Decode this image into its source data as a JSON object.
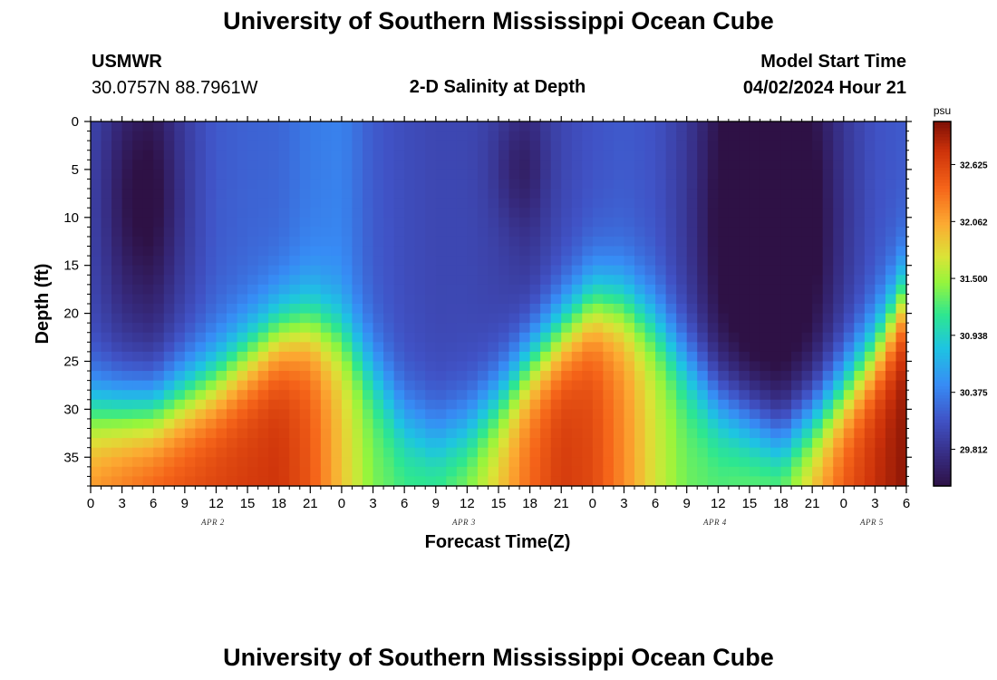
{
  "page": {
    "top_title": "University of Southern Mississippi Ocean Cube",
    "bottom_title": "University of Southern Mississippi Ocean Cube",
    "station_name": "USMWR",
    "station_coords": "30.0757N  88.7961W",
    "plot_title": "2-D Salinity at Depth",
    "model_start_label": "Model Start Time",
    "model_start_value": "04/02/2024 Hour 21"
  },
  "chart_data": {
    "type": "heatmap",
    "title": "2-D Salinity at Depth",
    "xlabel": "Forecast Time(Z)",
    "ylabel": "Depth (ft)",
    "x_range_hours": [
      0,
      78
    ],
    "y_range_ft": [
      0,
      38
    ],
    "y_inverted": true,
    "x_tick_hours": [
      0,
      3,
      6,
      9,
      12,
      15,
      18,
      21,
      24,
      27,
      30,
      33,
      36,
      39,
      42,
      45,
      48,
      51,
      54,
      57,
      60,
      63,
      66,
      69,
      72,
      75,
      78
    ],
    "x_tick_labels": [
      "0",
      "3",
      "6",
      "9",
      "12",
      "15",
      "18",
      "21",
      "0",
      "3",
      "6",
      "9",
      "12",
      "15",
      "18",
      "21",
      "0",
      "3",
      "6",
      "9",
      "12",
      "15",
      "18",
      "21",
      "0",
      "3",
      "6"
    ],
    "y_ticks": [
      0,
      5,
      10,
      15,
      20,
      25,
      30,
      35
    ],
    "y_tick_labels": [
      "0",
      "5",
      "10",
      "15",
      "20",
      "25",
      "30",
      "35"
    ],
    "date_labels": [
      {
        "text": "APR 2",
        "hour": 12
      },
      {
        "text": "APR 3",
        "hour": 36
      },
      {
        "text": "APR 4",
        "hour": 60
      },
      {
        "text": "APR 5",
        "hour": 75
      }
    ],
    "colorbar": {
      "unit": "psu",
      "range": [
        29.45,
        33.05
      ],
      "ticks": [
        29.812,
        30.375,
        30.938,
        31.5,
        32.062,
        32.625
      ],
      "tick_labels": [
        "29.812",
        "30.375",
        "30.938",
        "31.500",
        "32.062",
        "32.625"
      ]
    },
    "grid": {
      "nx": 78,
      "ny": 38,
      "bottom_depth_ft": 38,
      "interface_depth_profile": [
        {
          "hour": 0,
          "depth": 30
        },
        {
          "hour": 6,
          "depth": 30
        },
        {
          "hour": 12,
          "depth": 27
        },
        {
          "hour": 18,
          "depth": 22
        },
        {
          "hour": 21,
          "depth": 21
        },
        {
          "hour": 24,
          "depth": 22
        },
        {
          "hour": 27,
          "depth": 26
        },
        {
          "hour": 30,
          "depth": 31
        },
        {
          "hour": 33,
          "depth": 33
        },
        {
          "hour": 36,
          "depth": 32
        },
        {
          "hour": 39,
          "depth": 29
        },
        {
          "hour": 42,
          "depth": 25
        },
        {
          "hour": 45,
          "depth": 22
        },
        {
          "hour": 48,
          "depth": 19
        },
        {
          "hour": 51,
          "depth": 19
        },
        {
          "hour": 54,
          "depth": 21
        },
        {
          "hour": 57,
          "depth": 25
        },
        {
          "hour": 60,
          "depth": 29
        },
        {
          "hour": 63,
          "depth": 31
        },
        {
          "hour": 66,
          "depth": 33
        },
        {
          "hour": 69,
          "depth": 31
        },
        {
          "hour": 72,
          "depth": 28
        },
        {
          "hour": 75,
          "depth": 24
        },
        {
          "hour": 78,
          "depth": 18
        }
      ],
      "surface_salinity_profile": [
        {
          "hour": 0,
          "value": 30.0
        },
        {
          "hour": 3,
          "value": 29.8
        },
        {
          "hour": 6,
          "value": 29.72
        },
        {
          "hour": 9,
          "value": 29.95
        },
        {
          "hour": 12,
          "value": 30.15
        },
        {
          "hour": 15,
          "value": 30.2
        },
        {
          "hour": 18,
          "value": 30.22
        },
        {
          "hour": 21,
          "value": 30.35
        },
        {
          "hour": 24,
          "value": 30.4
        },
        {
          "hour": 27,
          "value": 30.15
        },
        {
          "hour": 30,
          "value": 30.05
        },
        {
          "hour": 33,
          "value": 30.0
        },
        {
          "hour": 36,
          "value": 30.0
        },
        {
          "hour": 39,
          "value": 29.95
        },
        {
          "hour": 42,
          "value": 29.85
        },
        {
          "hour": 45,
          "value": 30.0
        },
        {
          "hour": 48,
          "value": 30.1
        },
        {
          "hour": 51,
          "value": 30.15
        },
        {
          "hour": 54,
          "value": 30.1
        },
        {
          "hour": 57,
          "value": 29.9
        },
        {
          "hour": 60,
          "value": 29.6
        },
        {
          "hour": 63,
          "value": 29.5
        },
        {
          "hour": 66,
          "value": 29.5
        },
        {
          "hour": 69,
          "value": 29.6
        },
        {
          "hour": 72,
          "value": 29.9
        },
        {
          "hour": 75,
          "value": 30.1
        },
        {
          "hour": 78,
          "value": 30.15
        }
      ],
      "bottom_salinity_profile": [
        {
          "hour": 0,
          "value": 32.2
        },
        {
          "hour": 6,
          "value": 32.5
        },
        {
          "hour": 12,
          "value": 32.65
        },
        {
          "hour": 18,
          "value": 32.75
        },
        {
          "hour": 21,
          "value": 32.5
        },
        {
          "hour": 24,
          "value": 31.9
        },
        {
          "hour": 27,
          "value": 31.4
        },
        {
          "hour": 30,
          "value": 31.25
        },
        {
          "hour": 33,
          "value": 31.3
        },
        {
          "hour": 36,
          "value": 31.5
        },
        {
          "hour": 39,
          "value": 31.9
        },
        {
          "hour": 42,
          "value": 32.4
        },
        {
          "hour": 45,
          "value": 32.7
        },
        {
          "hour": 48,
          "value": 32.6
        },
        {
          "hour": 51,
          "value": 32.2
        },
        {
          "hour": 54,
          "value": 31.7
        },
        {
          "hour": 57,
          "value": 31.35
        },
        {
          "hour": 60,
          "value": 31.3
        },
        {
          "hour": 63,
          "value": 31.4
        },
        {
          "hour": 66,
          "value": 31.5
        },
        {
          "hour": 69,
          "value": 32.0
        },
        {
          "hour": 72,
          "value": 32.5
        },
        {
          "hour": 75,
          "value": 32.8
        },
        {
          "hour": 78,
          "value": 33.0
        }
      ],
      "low_salinity_cores": [
        {
          "center_hour": 5,
          "center_depth_ft": 8,
          "half_width_hours": 3.5,
          "half_depth_ft": 10,
          "anomaly": -0.35
        },
        {
          "center_hour": 41,
          "center_depth_ft": 5,
          "half_width_hours": 2.5,
          "half_depth_ft": 6,
          "anomaly": -0.25
        },
        {
          "center_hour": 65,
          "center_depth_ft": 11,
          "half_width_hours": 5.5,
          "half_depth_ft": 14,
          "anomaly": -0.45
        }
      ]
    }
  }
}
